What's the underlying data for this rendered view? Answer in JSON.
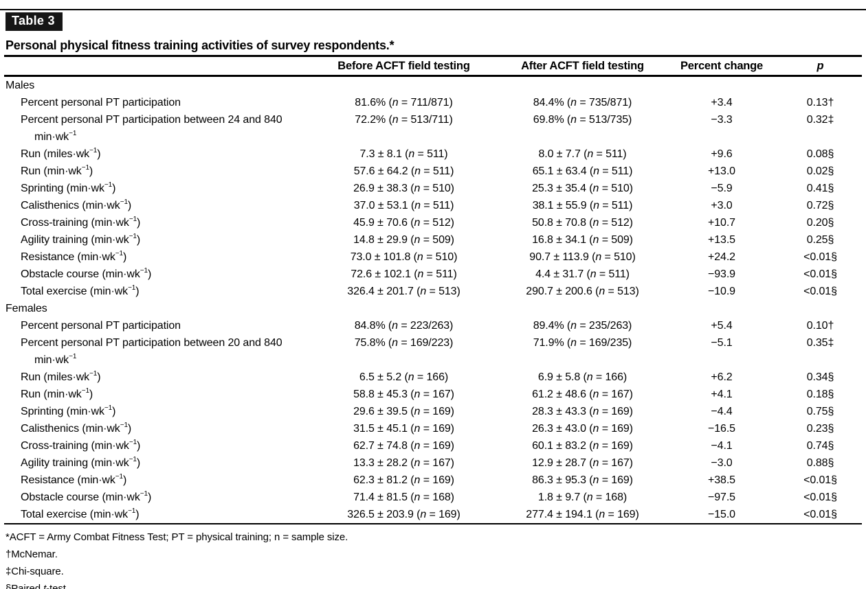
{
  "page": {
    "table_label": "Table 3",
    "title": "Personal physical fitness training activities of survey respondents.*"
  },
  "table": {
    "columns": [
      {
        "label": "",
        "italic": false
      },
      {
        "label": "Before ACFT field testing",
        "italic": false
      },
      {
        "label": "After ACFT field testing",
        "italic": false
      },
      {
        "label": "Percent change",
        "italic": false
      },
      {
        "label": "p",
        "italic": true
      }
    ],
    "sections": [
      {
        "name": "Males",
        "rows": [
          {
            "label": "Percent personal PT participation",
            "before": "81.6% ([i]n[/i] = 711/871)",
            "after": "84.4% ([i]n[/i] = 735/871)",
            "change": "+3.4",
            "p": "0.13†"
          },
          {
            "label": "Percent personal PT participation between 24 and 840",
            "label2": "min·wk[sup]−1[/sup]",
            "before": "72.2% ([i]n[/i] = 513/711)",
            "after": "69.8% ([i]n[/i] = 513/735)",
            "change": "−3.3",
            "p": "0.32‡"
          },
          {
            "label": "Run (miles·wk[sup]−1[/sup])",
            "before": "7.3 ± 8.1 ([i]n[/i] = 511)",
            "after": "8.0 ± 7.7 ([i]n[/i] = 511)",
            "change": "+9.6",
            "p": "0.08§"
          },
          {
            "label": "Run (min·wk[sup]−1[/sup])",
            "before": "57.6 ± 64.2 ([i]n[/i] = 511)",
            "after": "65.1 ± 63.4 ([i]n[/i] = 511)",
            "change": "+13.0",
            "p": "0.02§"
          },
          {
            "label": "Sprinting (min·wk[sup]−1[/sup])",
            "before": "26.9 ± 38.3 ([i]n[/i] = 510)",
            "after": "25.3 ± 35.4 ([i]n[/i] = 510)",
            "change": "−5.9",
            "p": "0.41§"
          },
          {
            "label": "Calisthenics (min·wk[sup]−1[/sup])",
            "before": "37.0 ± 53.1 ([i]n[/i] = 511)",
            "after": "38.1 ± 55.9 ([i]n[/i] = 511)",
            "change": "+3.0",
            "p": "0.72§"
          },
          {
            "label": "Cross-training (min·wk[sup]−1[/sup])",
            "before": "45.9 ± 70.6 ([i]n[/i] = 512)",
            "after": "50.8 ± 70.8 ([i]n[/i] = 512)",
            "change": "+10.7",
            "p": "0.20§"
          },
          {
            "label": "Agility training (min·wk[sup]−1[/sup])",
            "before": "14.8 ± 29.9 ([i]n[/i] = 509)",
            "after": "16.8 ± 34.1 ([i]n[/i] = 509)",
            "change": "+13.5",
            "p": "0.25§"
          },
          {
            "label": "Resistance (min·wk[sup]−1[/sup])",
            "before": "73.0 ± 101.8 ([i]n[/i] = 510)",
            "after": "90.7 ± 113.9 ([i]n[/i] = 510)",
            "change": "+24.2",
            "p": "<0.01§"
          },
          {
            "label": "Obstacle course (min·wk[sup]−1[/sup])",
            "before": "72.6 ± 102.1 ([i]n[/i] = 511)",
            "after": "4.4 ± 31.7 ([i]n[/i] = 511)",
            "change": "−93.9",
            "p": "<0.01§"
          },
          {
            "label": "Total exercise (min·wk[sup]−1[/sup])",
            "before": "326.4 ± 201.7 ([i]n[/i] = 513)",
            "after": "290.7 ± 200.6 ([i]n[/i] = 513)",
            "change": "−10.9",
            "p": "<0.01§"
          }
        ]
      },
      {
        "name": "Females",
        "rows": [
          {
            "label": "Percent personal PT participation",
            "before": "84.8% ([i]n[/i] = 223/263)",
            "after": "89.4% ([i]n[/i] = 235/263)",
            "change": "+5.4",
            "p": "0.10†"
          },
          {
            "label": "Percent personal PT participation between 20 and 840",
            "label2": "min·wk[sup]−1[/sup]",
            "before": "75.8% ([i]n[/i] = 169/223)",
            "after": "71.9% ([i]n[/i] = 169/235)",
            "change": "−5.1",
            "p": "0.35‡"
          },
          {
            "label": "Run (miles·wk[sup]−1[/sup])",
            "before": "6.5 ± 5.2 ([i]n[/i] = 166)",
            "after": "6.9 ± 5.8 ([i]n[/i] = 166)",
            "change": "+6.2",
            "p": "0.34§"
          },
          {
            "label": "Run (min·wk[sup]−1[/sup])",
            "before": "58.8 ± 45.3 ([i]n[/i] = 167)",
            "after": "61.2 ± 48.6 ([i]n[/i] = 167)",
            "change": "+4.1",
            "p": "0.18§"
          },
          {
            "label": "Sprinting (min·wk[sup]−1[/sup])",
            "before": "29.6 ± 39.5 ([i]n[/i] = 169)",
            "after": "28.3 ± 43.3 ([i]n[/i] = 169)",
            "change": "−4.4",
            "p": "0.75§"
          },
          {
            "label": "Calisthenics (min·wk[sup]−1[/sup])",
            "before": "31.5 ± 45.1 ([i]n[/i] = 169)",
            "after": "26.3 ± 43.0 ([i]n[/i] = 169)",
            "change": "−16.5",
            "p": "0.23§"
          },
          {
            "label": "Cross-training (min·wk[sup]−1[/sup])",
            "before": "62.7 ± 74.8 ([i]n[/i] = 169)",
            "after": "60.1 ± 83.2 ([i]n[/i] = 169)",
            "change": "−4.1",
            "p": "0.74§"
          },
          {
            "label": "Agility training (min·wk[sup]−1[/sup])",
            "before": "13.3 ± 28.2 ([i]n[/i] = 167)",
            "after": "12.9 ± 28.7 ([i]n[/i] = 167)",
            "change": "−3.0",
            "p": "0.88§"
          },
          {
            "label": "Resistance (min·wk[sup]−1[/sup])",
            "before": "62.3 ± 81.2 ([i]n[/i] = 169)",
            "after": "86.3 ± 95.3 ([i]n[/i] = 169)",
            "change": "+38.5",
            "p": "<0.01§"
          },
          {
            "label": "Obstacle course (min·wk[sup]−1[/sup])",
            "before": "71.4 ± 81.5 ([i]n[/i] = 168)",
            "after": "1.8 ± 9.7 ([i]n[/i] = 168)",
            "change": "−97.5",
            "p": "<0.01§"
          },
          {
            "label": "Total exercise (min·wk[sup]−1[/sup])",
            "before": "326.5 ± 203.9 ([i]n[/i] = 169)",
            "after": "277.4 ± 194.1 ([i]n[/i] = 169)",
            "change": "−15.0",
            "p": "<0.01§"
          }
        ]
      }
    ]
  },
  "footnotes": [
    "*ACFT = Army Combat Fitness Test; PT = physical training; n = sample size.",
    "†McNemar.",
    "‡Chi-square.",
    "§Paired [i]t[/i]-test."
  ]
}
